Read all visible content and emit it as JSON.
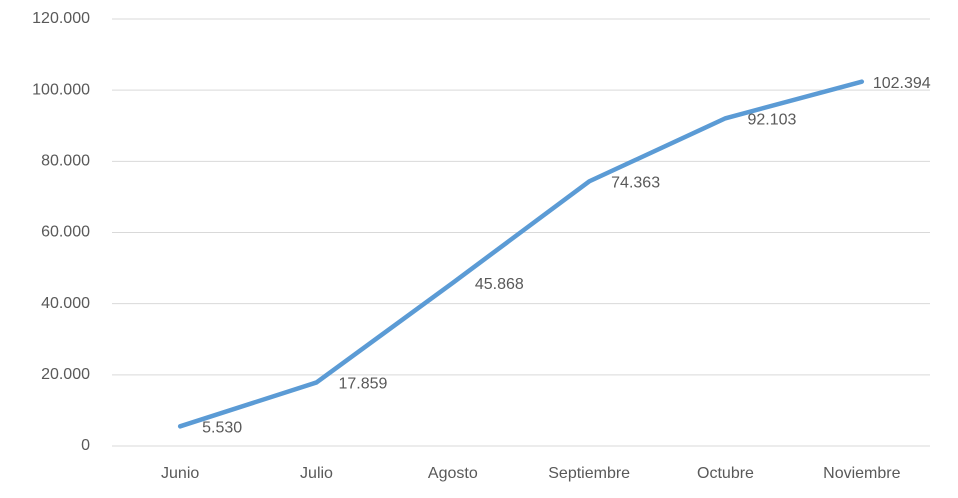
{
  "chart_data": {
    "type": "line",
    "categories": [
      "Junio",
      "Julio",
      "Agosto",
      "Septiembre",
      "Octubre",
      "Noviembre"
    ],
    "series": [
      {
        "color": "#5b9bd5",
        "values": [
          5530,
          17859,
          45868,
          74363,
          92103,
          102394
        ],
        "value_labels": [
          "5.530",
          "17.859",
          "45.868",
          "74.363",
          "92.103",
          "102.394"
        ]
      }
    ],
    "ylim": [
      0,
      120000
    ],
    "yticks": [
      0,
      {
        "value": 20000,
        "label": "20.000"
      },
      {
        "value": 40000,
        "label": "40.000"
      },
      {
        "value": 60000,
        "label": "60.000"
      },
      {
        "value": 80000,
        "label": "80.000"
      },
      {
        "value": 100000,
        "label": "100.000"
      },
      {
        "value": 120000,
        "label": "120.000"
      }
    ],
    "grid": true
  }
}
